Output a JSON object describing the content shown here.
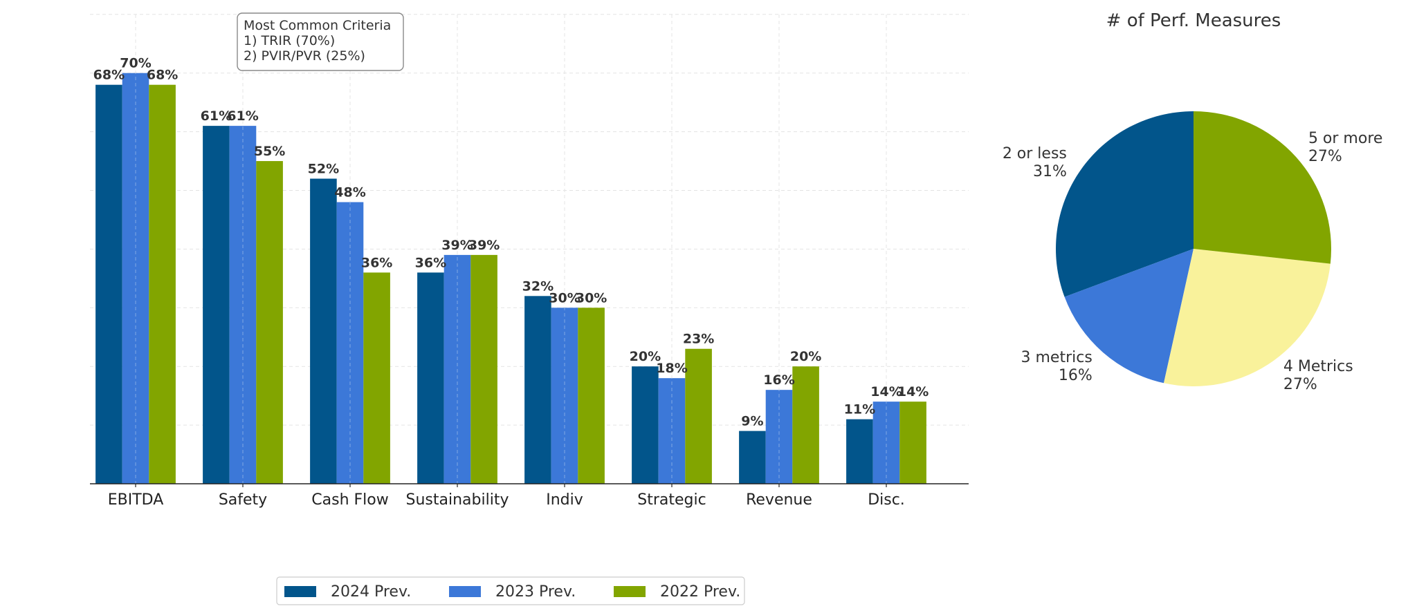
{
  "chart_data": [
    {
      "type": "bar",
      "title": "",
      "xlabel": "",
      "ylabel": "",
      "ylim": [
        0,
        80
      ],
      "grid": true,
      "categories": [
        "EBITDA",
        "Safety",
        "Cash Flow",
        "Sustainability",
        "Indiv",
        "Strategic",
        "Revenue",
        "Disc."
      ],
      "series": [
        {
          "name": "2024 Prev.",
          "color": "#02558b",
          "values": [
            68,
            61,
            52,
            36,
            32,
            20,
            9,
            11
          ]
        },
        {
          "name": "2023 Prev.",
          "color": "#3c78d8",
          "values": [
            70,
            61,
            48,
            39,
            30,
            18,
            16,
            14
          ]
        },
        {
          "name": "2022 Prev.",
          "color": "#82a500",
          "values": [
            68,
            55,
            36,
            39,
            30,
            23,
            20,
            14
          ]
        }
      ],
      "value_label_format": "{v}%",
      "legend_position": "bottom-center",
      "annotation": {
        "lines": [
          "Most Common Criteria",
          "1) TRIR (70%)",
          "2) PVIR/PVR (25%)"
        ]
      }
    },
    {
      "type": "pie",
      "title": "# of Perf. Measures",
      "start_angle": 90,
      "direction": "counterclockwise",
      "slices": [
        {
          "label": "2 or less",
          "value": 31,
          "pct_label": "31%",
          "color": "#02558b"
        },
        {
          "label": "3 metrics",
          "value": 16,
          "pct_label": "16%",
          "color": "#3c78d8"
        },
        {
          "label": "4 Metrics",
          "value": 27,
          "pct_label": "27%",
          "color": "#f9f29b"
        },
        {
          "label": "5 or more",
          "value": 27,
          "pct_label": "27%",
          "color": "#82a500"
        }
      ]
    }
  ],
  "annotation": {
    "line1": "Most Common Criteria",
    "line2": "1) TRIR (70%)",
    "line3": "2) PVIR/PVR (25%)"
  },
  "legend": {
    "items": [
      "2024 Prev.",
      "2023 Prev.",
      "2022 Prev."
    ]
  },
  "pie_title": "# of Perf. Measures"
}
